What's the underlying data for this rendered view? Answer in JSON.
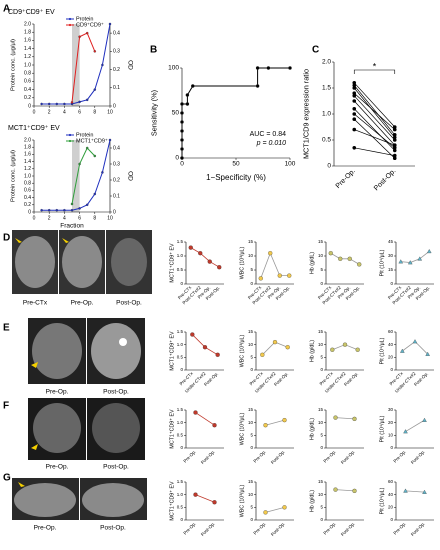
{
  "panel_labels": [
    "A",
    "B",
    "C",
    "D",
    "E",
    "F",
    "G"
  ],
  "image_captions": [
    [
      "Pre-CTx",
      "Pre-Op.",
      "Post-Op."
    ],
    [
      "Pre-Op.",
      "Post-Op."
    ],
    [
      "Pre-Op.",
      "Post-Op."
    ],
    [
      "Pre-Op.",
      "Post-Op."
    ]
  ],
  "chart_data": [
    {
      "type": "line",
      "title": "CD9⁺CD9⁺ EV",
      "ylabel": "Protein conc. (μg/μl)",
      "y2label": "OD",
      "legend": true,
      "shade": [
        5,
        6
      ],
      "x": [
        1,
        2,
        3,
        4,
        5,
        6,
        7,
        8,
        9,
        10
      ],
      "xlim": [
        0,
        10
      ],
      "xticks": [
        0,
        2,
        4,
        6,
        8,
        10
      ],
      "ylim": [
        0,
        2
      ],
      "yticks": [
        0,
        0.2,
        0.4,
        0.6,
        0.8,
        {
          "value": 1,
          "label": "1.0"
        },
        1.2,
        1.4,
        1.6,
        1.8,
        {
          "value": 2,
          "label": "2.0"
        }
      ],
      "y2lim": [
        0,
        0.45
      ],
      "y2ticks": [
        0,
        0.1,
        0.2,
        0.3,
        0.4
      ],
      "series": [
        {
          "name": "Protein",
          "color": "#1f2fbf",
          "values": [
            0.05,
            0.05,
            0.05,
            0.05,
            0.05,
            0.1,
            0.15,
            0.4,
            1.0,
            2.0
          ]
        },
        {
          "name": "CD9⁺CD9⁺",
          "color": "#e02020",
          "axis": "y2",
          "values": [
            null,
            null,
            null,
            null,
            0.02,
            0.38,
            0.4,
            0.3,
            null,
            null
          ]
        }
      ]
    },
    {
      "type": "line",
      "title": "MCT1⁺CD9⁺ EV",
      "ylabel": "Protein conc. (μg/μl)",
      "y2label": "OD",
      "xlabel": "Fraction",
      "legend": true,
      "shade": [
        5,
        6
      ],
      "x": [
        1,
        2,
        3,
        4,
        5,
        6,
        7,
        8,
        9,
        10
      ],
      "xlim": [
        0,
        10
      ],
      "xticks": [
        0,
        2,
        4,
        6,
        8,
        10
      ],
      "ylim": [
        0,
        2
      ],
      "yticks": [
        0,
        0.2,
        0.4,
        0.6,
        0.8,
        {
          "value": 1,
          "label": "1.0"
        },
        1.2,
        1.4,
        1.6,
        1.8,
        {
          "value": 2,
          "label": "2.0"
        }
      ],
      "y2lim": [
        0,
        0.45
      ],
      "y2ticks": [
        0,
        0.1,
        0.2,
        0.3,
        0.4
      ],
      "series": [
        {
          "name": "Protein",
          "color": "#1f2fbf",
          "values": [
            0.05,
            0.05,
            0.05,
            0.05,
            0.05,
            0.1,
            0.2,
            0.5,
            1.1,
            2.0
          ]
        },
        {
          "name": "MCT1⁺CD9⁺",
          "color": "#2e9e3a",
          "axis": "y2",
          "values": [
            null,
            null,
            null,
            null,
            0.05,
            0.3,
            0.4,
            0.35,
            null,
            null
          ]
        }
      ]
    },
    {
      "type": "line",
      "ylabel": "Sensitivity (%)",
      "xlabel": "1−Specificity (%)",
      "annotations": [
        "AUC = 0.84",
        "p = 0.010"
      ],
      "x": [
        0,
        0,
        0,
        0,
        0,
        0,
        0,
        5,
        5,
        10,
        70,
        70,
        80,
        100
      ],
      "xlim": [
        0,
        100
      ],
      "xticks": [
        0,
        50,
        100
      ],
      "ylim": [
        0,
        100
      ],
      "yticks": [
        0,
        50,
        100
      ],
      "series": [
        {
          "color": "#000",
          "marker": "circle",
          "values": [
            0,
            10,
            20,
            30,
            40,
            50,
            60,
            60,
            70,
            80,
            80,
            100,
            100,
            100
          ]
        }
      ]
    },
    {
      "type": "paired",
      "ylabel": "MCT1/CD9 expression ratio",
      "annotations": [
        "*"
      ],
      "categories": [
        "Pre-Op.",
        "Post-Op."
      ],
      "ylim": [
        0,
        2
      ],
      "yticks": [
        0,
        0.5,
        {
          "value": 1,
          "label": "1.0"
        },
        1.5,
        {
          "value": 2,
          "label": "2.0"
        }
      ],
      "color": "#000",
      "series": [
        {
          "values": [
            1.6,
            0.75
          ]
        },
        {
          "values": [
            1.55,
            0.6
          ]
        },
        {
          "values": [
            1.5,
            0.55
          ]
        },
        {
          "values": [
            1.4,
            0.7
          ]
        },
        {
          "values": [
            1.35,
            0.5
          ]
        },
        {
          "values": [
            1.25,
            0.4
          ]
        },
        {
          "values": [
            1.1,
            0.3
          ]
        },
        {
          "values": [
            1.0,
            0.35
          ]
        },
        {
          "values": [
            0.9,
            0.15
          ]
        },
        {
          "values": [
            0.7,
            0.4
          ]
        },
        {
          "values": [
            0.35,
            0.2
          ]
        }
      ]
    },
    {
      "type": "line",
      "ylabel": "MCT1⁺CD9⁺ EV",
      "categories": [
        "Pre-CTx",
        "Post-CTx#2",
        "Pre-Op.",
        "Post-Op."
      ],
      "ylim": [
        0,
        1.5
      ],
      "yticks": [
        0,
        0.5,
        {
          "value": 1,
          "label": "1.0"
        },
        1.5
      ],
      "series": [
        {
          "color": "#c0392b",
          "line_color": "#c0392b",
          "marker": "circle",
          "values": [
            1.3,
            1.1,
            0.8,
            0.6
          ]
        }
      ]
    },
    {
      "type": "line",
      "ylabel": "WBC (10³/μL)",
      "categories": [
        "Pre-CTx",
        "Post-CTx#2",
        "Pre-Op.",
        "Post-Op."
      ],
      "ylim": [
        0,
        15
      ],
      "yticks": [
        0,
        5,
        10,
        15
      ],
      "series": [
        {
          "color": "#f2c94c",
          "line_color": "#999999",
          "marker": "circle",
          "values": [
            2,
            11,
            3,
            3
          ]
        }
      ]
    },
    {
      "type": "line",
      "ylabel": "Hb (g/dL)",
      "categories": [
        "Pre-CTx",
        "Post-CTx#2",
        "Pre-Op.",
        "Post-Op."
      ],
      "ylim": [
        0,
        15
      ],
      "yticks": [
        0,
        5,
        10,
        15
      ],
      "series": [
        {
          "color": "#c8c46a",
          "line_color": "#999999",
          "marker": "circle",
          "values": [
            11,
            9,
            9,
            7
          ]
        }
      ]
    },
    {
      "type": "line",
      "ylabel": "Plt (10⁴/μL)",
      "categories": [
        "Pre-CTx",
        "Post-CTx#2",
        "Pre-Op.",
        "Post-Op."
      ],
      "ylim": [
        0,
        45
      ],
      "yticks": [
        0,
        15,
        30,
        45
      ],
      "series": [
        {
          "color": "#5fb3c9",
          "line_color": "#999999",
          "marker": "triangle",
          "values": [
            24,
            23,
            27,
            35
          ]
        }
      ]
    },
    {
      "type": "line",
      "ylabel": "MCT1⁺CD9⁺ EV",
      "categories": [
        "Pre-CTx",
        "Under-CTx#2",
        "Post-Op."
      ],
      "ylim": [
        0,
        1.5
      ],
      "yticks": [
        0,
        0.5,
        {
          "value": 1,
          "label": "1.0"
        },
        1.5
      ],
      "series": [
        {
          "color": "#c0392b",
          "line_color": "#c0392b",
          "marker": "circle",
          "values": [
            1.4,
            0.9,
            0.6
          ]
        }
      ]
    },
    {
      "type": "line",
      "ylabel": "WBC (10³/μL)",
      "categories": [
        "Pre-CTx",
        "Under-CTx#2",
        "Post-Op."
      ],
      "ylim": [
        0,
        15
      ],
      "yticks": [
        0,
        5,
        10,
        15
      ],
      "series": [
        {
          "color": "#f2c94c",
          "line_color": "#999999",
          "marker": "circle",
          "values": [
            6,
            11,
            9
          ]
        }
      ]
    },
    {
      "type": "line",
      "ylabel": "Hb (g/dL)",
      "categories": [
        "Pre-CTx",
        "Under-CTx#2",
        "Post-Op."
      ],
      "ylim": [
        0,
        15
      ],
      "yticks": [
        0,
        5,
        10,
        15
      ],
      "series": [
        {
          "color": "#c8c46a",
          "line_color": "#999999",
          "marker": "circle",
          "values": [
            8,
            10,
            8
          ]
        }
      ]
    },
    {
      "type": "line",
      "ylabel": "Plt (10⁴/μL)",
      "categories": [
        "Pre-CTx",
        "Under-CTx#2",
        "Post-Op."
      ],
      "ylim": [
        0,
        60
      ],
      "yticks": [
        0,
        20,
        40,
        60
      ],
      "series": [
        {
          "color": "#5fb3c9",
          "line_color": "#999999",
          "marker": "triangle",
          "values": [
            30,
            45,
            25
          ]
        }
      ]
    },
    {
      "type": "line",
      "ylabel": "MCT1⁺CD9⁺ EV",
      "categories": [
        "Pre-Op.",
        "Post-Op."
      ],
      "ylim": [
        0,
        1.5
      ],
      "yticks": [
        0,
        0.5,
        {
          "value": 1,
          "label": "1.0"
        },
        1.5
      ],
      "series": [
        {
          "color": "#c0392b",
          "line_color": "#c0392b",
          "marker": "circle",
          "values": [
            1.4,
            0.9
          ]
        }
      ]
    },
    {
      "type": "line",
      "ylabel": "WBC (10³/μL)",
      "categories": [
        "Pre-Op.",
        "Post-Op."
      ],
      "ylim": [
        0,
        15
      ],
      "yticks": [
        0,
        5,
        10,
        15
      ],
      "series": [
        {
          "color": "#f2c94c",
          "line_color": "#999999",
          "marker": "circle",
          "values": [
            9,
            11
          ]
        }
      ]
    },
    {
      "type": "line",
      "ylabel": "Hb (g/dL)",
      "categories": [
        "Pre-Op.",
        "Post-Op."
      ],
      "ylim": [
        0,
        15
      ],
      "yticks": [
        0,
        5,
        10,
        15
      ],
      "series": [
        {
          "color": "#c8c46a",
          "line_color": "#999999",
          "marker": "circle",
          "values": [
            12,
            11.5
          ]
        }
      ]
    },
    {
      "type": "line",
      "ylabel": "Plt (10⁴/μL)",
      "categories": [
        "Pre-Op.",
        "Post-Op."
      ],
      "ylim": [
        0,
        30
      ],
      "yticks": [
        0,
        10,
        20,
        30
      ],
      "series": [
        {
          "color": "#5fb3c9",
          "line_color": "#999999",
          "marker": "triangle",
          "values": [
            13,
            22
          ]
        }
      ]
    },
    {
      "type": "line",
      "ylabel": "MCT1⁺CD9⁺ EV",
      "categories": [
        "Pre-Op.",
        "Post-Op."
      ],
      "ylim": [
        0,
        1.5
      ],
      "yticks": [
        0,
        0.5,
        {
          "value": 1,
          "label": "1.0"
        },
        1.5
      ],
      "series": [
        {
          "color": "#c0392b",
          "line_color": "#c0392b",
          "marker": "circle",
          "values": [
            1.0,
            0.7
          ]
        }
      ]
    },
    {
      "type": "line",
      "ylabel": "WBC (10³/μL)",
      "categories": [
        "Pre-Op.",
        "Post-Op."
      ],
      "ylim": [
        0,
        15
      ],
      "yticks": [
        0,
        5,
        10,
        15
      ],
      "series": [
        {
          "color": "#f2c94c",
          "line_color": "#999999",
          "marker": "circle",
          "values": [
            3,
            5
          ]
        }
      ]
    },
    {
      "type": "line",
      "ylabel": "Hb (g/dL)",
      "categories": [
        "Pre-Op.",
        "Post-Op."
      ],
      "ylim": [
        0,
        15
      ],
      "yticks": [
        0,
        5,
        10,
        15
      ],
      "series": [
        {
          "color": "#c8c46a",
          "line_color": "#999999",
          "marker": "circle",
          "values": [
            12,
            11.5
          ]
        }
      ]
    },
    {
      "type": "line",
      "ylabel": "Plt (10⁴/μL)",
      "categories": [
        "Pre-Op.",
        "Post-Op."
      ],
      "ylim": [
        0,
        60
      ],
      "yticks": [
        0,
        20,
        40,
        60
      ],
      "series": [
        {
          "color": "#5fb3c9",
          "line_color": "#999999",
          "marker": "triangle",
          "values": [
            46,
            44
          ]
        }
      ]
    }
  ]
}
